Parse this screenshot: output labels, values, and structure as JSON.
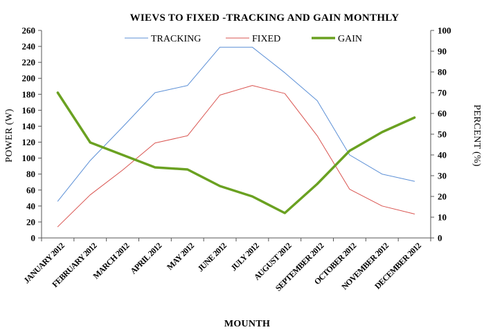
{
  "chart_data": {
    "type": "line",
    "title": "WIEVS TO FIXED -TRACKING AND GAIN MONTHLY",
    "xlabel": "MOUNTH",
    "ylabel": "POWER (W)",
    "y2label": "PERCENT (%)",
    "categories": [
      "JANUARY 2012",
      "FEBRUARY 2012",
      "MARCH 2012",
      "APRIL 2012",
      "MAY 2012",
      "JUNE 2012",
      "JULY 2012",
      "AUGUST 2012",
      "SEPTEMBER 2012",
      "OCTOBER 2012",
      "NOVEMBER 2012",
      "DECEMBER 2012"
    ],
    "ylim": [
      0,
      260
    ],
    "yticks": [
      0,
      20,
      40,
      60,
      80,
      100,
      120,
      140,
      160,
      180,
      200,
      220,
      240,
      260
    ],
    "y2lim": [
      0,
      100
    ],
    "y2ticks": [
      0,
      10,
      20,
      30,
      40,
      50,
      60,
      70,
      80,
      90,
      100
    ],
    "legend_position": "top-center",
    "grid": false,
    "series": [
      {
        "name": "TRACKING",
        "axis": "left",
        "color": "#5b8fd6",
        "width": 1,
        "values": [
          46,
          97,
          139,
          182,
          191,
          239,
          239,
          207,
          172,
          104,
          80,
          71
        ]
      },
      {
        "name": "FIXED",
        "axis": "left",
        "color": "#d9534f",
        "width": 1,
        "values": [
          14,
          54,
          85,
          119,
          128,
          179,
          191,
          181,
          128,
          61,
          40,
          30
        ]
      },
      {
        "name": "GAIN",
        "axis": "right",
        "color": "#6aa121",
        "width": 3.5,
        "values": [
          70,
          46,
          40,
          34,
          33,
          25,
          20,
          12,
          26,
          42,
          51,
          58
        ]
      }
    ]
  }
}
